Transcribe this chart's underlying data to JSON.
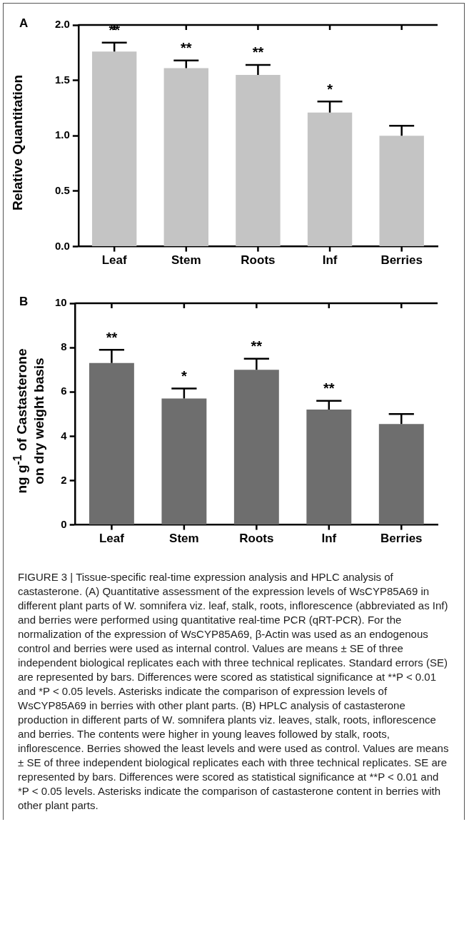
{
  "chart_data": [
    {
      "type": "bar",
      "title": "A",
      "ylabel": "Relative Quantitation",
      "categories": [
        "Leaf",
        "Stem",
        "Roots",
        "Inf",
        "Berries"
      ],
      "values": [
        1.76,
        1.61,
        1.55,
        1.21,
        1.0
      ],
      "errors": [
        0.08,
        0.07,
        0.09,
        0.1,
        0.09
      ],
      "color": "#c4c4c4",
      "value_labels": [
        "**",
        "**",
        "**",
        "*",
        null
      ],
      "ylim": [
        0,
        2
      ],
      "yticks": [
        {
          "value": 0,
          "label": "0.0"
        },
        {
          "value": 0.5,
          "label": "0.5"
        },
        {
          "value": 1,
          "label": "1.0"
        },
        {
          "value": 1.5,
          "label": "1.5"
        },
        {
          "value": 2,
          "label": "2.0"
        }
      ],
      "grid": false,
      "legend": false
    },
    {
      "type": "bar",
      "title": "B",
      "ylabel": "ng g$^{-1}$ of Castasterone\non dry weight basis",
      "categories": [
        "Leaf",
        "Stem",
        "Roots",
        "Inf",
        "Berries"
      ],
      "values": [
        7.3,
        5.7,
        7.0,
        5.2,
        4.55
      ],
      "errors": [
        0.6,
        0.45,
        0.5,
        0.4,
        0.45
      ],
      "color": "#6e6e6e",
      "value_labels": [
        "**",
        "*",
        "**",
        "**",
        null
      ],
      "ylim": [
        0,
        10
      ],
      "yticks": [
        0,
        2,
        4,
        6,
        8,
        10
      ],
      "grid": false,
      "legend": false,
      "annotations": [
        "FIGURE 3 | Tissue-specific real-time expression analysis and HPLC analysis of castasterone. (A) Quantitative assessment of the expression levels of WsCYP85A69 in different plant parts of W. somnifera viz. leaf, stalk, roots, inflorescence (abbreviated as Inf) and berries were performed using quantitative real-time PCR (qRT-PCR). For the normalization of the expression of WsCYP85A69, β-Actin was used as an endogenous control and berries were used as internal control. Values are means ± SE of three independent biological replicates each with three technical replicates. Standard errors (SE) are represented by bars. Differences were scored as statistical significance at **P < 0.01 and *P < 0.05 levels. Asterisks indicate the comparison of expression levels of WsCYP85A69 in berries with other plant parts. (B) HPLC analysis of castasterone production in different parts of W. somnifera plants viz. leaves, stalk, roots, inflorescence and berries. The contents were higher in young leaves followed by stalk, roots, inflorescence. Berries showed the least levels and were used as control. Values are means ± SE of three independent biological replicates each with three technical replicates. SE are represented by bars. Differences were scored as statistical significance at **P < 0.01 and *P < 0.05 levels. Asterisks indicate the comparison of castasterone content in berries with other plant parts."
      ]
    }
  ]
}
